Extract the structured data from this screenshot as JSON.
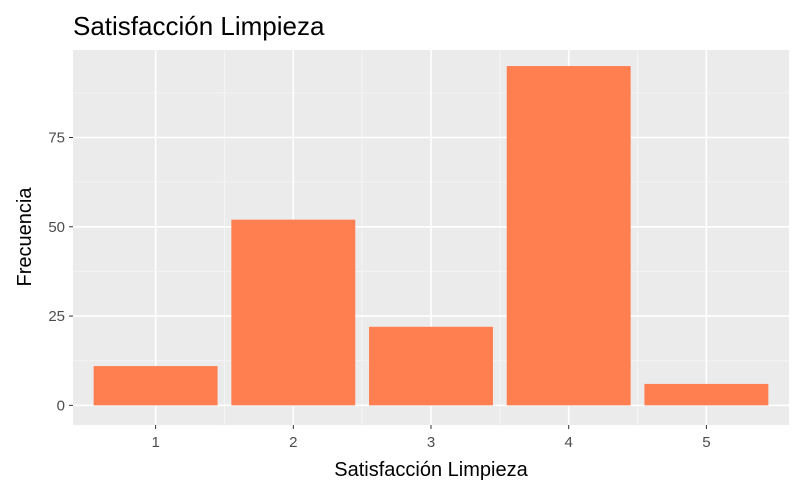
{
  "chart_data": {
    "type": "bar",
    "title": "Satisfacción Limpieza",
    "xlabel": "Satisfacción Limpieza",
    "ylabel": "Frecuencia",
    "categories": [
      "1",
      "2",
      "3",
      "4",
      "5"
    ],
    "values": [
      11,
      52,
      22,
      95,
      6
    ],
    "yticks": [
      0,
      25,
      50,
      75
    ],
    "ytick_labels": [
      "0",
      "25",
      "50",
      "75"
    ],
    "ylim": [
      -5.5,
      99.5
    ],
    "grid": true,
    "colors": {
      "bar": "#FF7F50",
      "panel_background": "#EBEBEB",
      "grid_major": "#FFFFFF",
      "grid_minor": "#F4F4F4",
      "tick": "#333333"
    }
  }
}
